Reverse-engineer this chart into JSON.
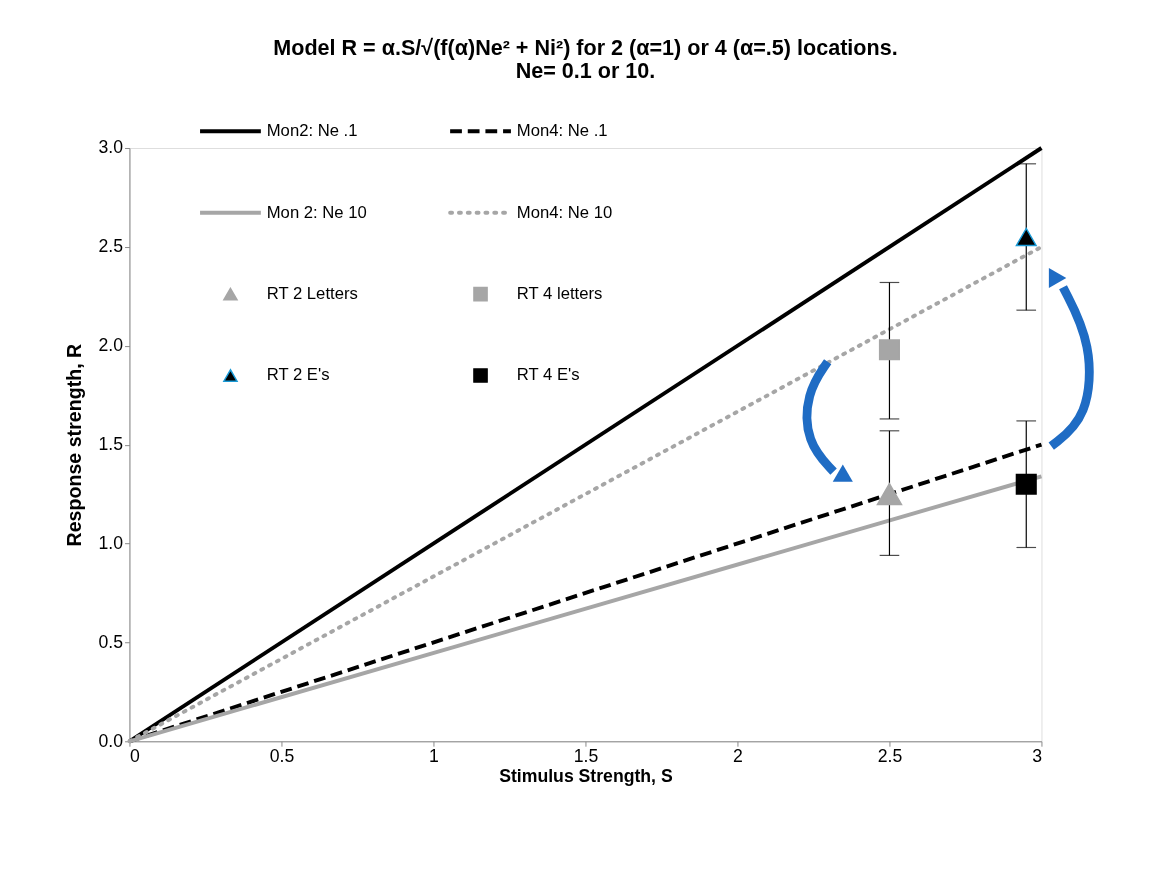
{
  "chart_data": {
    "type": "line",
    "title": [
      "Model R = α.S/√(f(α)Ne² + Ni²)  for 2 (α=1) or 4 (α=.5) locations.",
      "Ne= 0.1 or 10."
    ],
    "xlabel": "Stimulus Strength, S",
    "ylabel": "Response  strength, R",
    "xlim": [
      0,
      3
    ],
    "ylim": [
      0,
      3
    ],
    "xticks": [
      0,
      0.5,
      1,
      1.5,
      2,
      2.5,
      3
    ],
    "yticks": [
      {
        "value": 0,
        "label": "0.0"
      },
      {
        "value": 0.5,
        "label": "0.5"
      },
      {
        "value": 1,
        "label": "1.0"
      },
      {
        "value": 1.5,
        "label": "1.5"
      },
      {
        "value": 2,
        "label": "2.0"
      },
      {
        "value": 2.5,
        "label": "2.5"
      },
      {
        "value": 3,
        "label": "3.0"
      }
    ],
    "grid": false,
    "legend": "top left",
    "series": [
      {
        "name": "Mon2: Ne .1",
        "line_style": "solid",
        "color": "#000000",
        "x": [
          0,
          3
        ],
        "values": [
          0,
          3.0
        ]
      },
      {
        "name": "Mon4: Ne .1",
        "line_style": "dashed",
        "color": "#000000",
        "x": [
          0,
          3
        ],
        "values": [
          0,
          1.5
        ]
      },
      {
        "name": "Mon 2: Ne 10",
        "line_style": "solid",
        "color": "#a6a6a6",
        "x": [
          0,
          3
        ],
        "values": [
          0,
          1.34
        ]
      },
      {
        "name": "Mon4: Ne 10",
        "line_style": "dotted",
        "color": "#a6a6a6",
        "x": [
          0,
          3
        ],
        "values": [
          0,
          2.5
        ]
      },
      {
        "name": "RT 2 Letters",
        "type": "scatter",
        "marker": "triangle",
        "color": "#a6a6a6",
        "x": [
          2.5
        ],
        "values": [
          1.25
        ],
        "errors": [
          [
            0.94,
            1.57
          ]
        ]
      },
      {
        "name": "RT 4 letters",
        "type": "scatter",
        "marker": "square",
        "color": "#a6a6a6",
        "x": [
          2.5
        ],
        "values": [
          1.98
        ],
        "errors": [
          [
            1.63,
            2.32
          ]
        ]
      },
      {
        "name": "RT 2 E's",
        "type": "scatter",
        "marker": "triangle",
        "color": "#000000",
        "x": [
          2.95
        ],
        "values": [
          2.55
        ],
        "errors": [
          [
            2.18,
            2.92
          ]
        ]
      },
      {
        "name": "RT 4 E's",
        "type": "scatter",
        "marker": "square",
        "color": "#000000",
        "x": [
          2.95
        ],
        "values": [
          1.3
        ],
        "errors": [
          [
            0.98,
            1.62
          ]
        ]
      }
    ]
  }
}
